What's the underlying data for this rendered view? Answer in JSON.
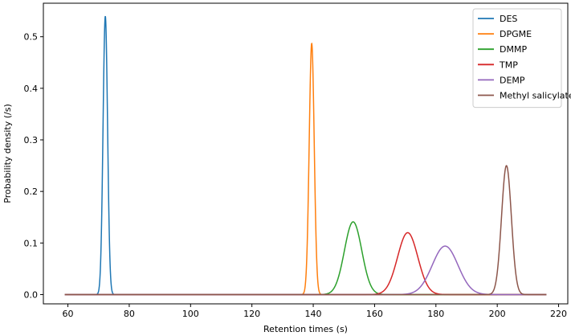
{
  "chart_data": {
    "type": "line",
    "title": "",
    "xlabel": "Retention times (s)",
    "ylabel": "Probability density (/s)",
    "xlim": [
      52,
      223
    ],
    "ylim": [
      -0.018,
      0.565
    ],
    "x_range": [
      59,
      216
    ],
    "xticks": [
      60,
      80,
      100,
      120,
      140,
      160,
      180,
      200,
      220
    ],
    "yticks": [
      0.0,
      0.1,
      0.2,
      0.3,
      0.4,
      0.5
    ],
    "ytick_labels": [
      "0.0",
      "0.1",
      "0.2",
      "0.3",
      "0.4",
      "0.5"
    ],
    "grid": false,
    "legend_position": "top-right",
    "series": [
      {
        "name": "DES",
        "color": "#1f77b4",
        "shape": "gaussian",
        "mean": 72.2,
        "peak": 0.54,
        "sd": 0.74
      },
      {
        "name": "DPGME",
        "color": "#ff7f0e",
        "shape": "gaussian",
        "mean": 139.5,
        "peak": 0.487,
        "sd": 0.82
      },
      {
        "name": "DMMP",
        "color": "#2ca02c",
        "shape": "gaussian",
        "mean": 153.0,
        "peak": 0.141,
        "sd": 2.83
      },
      {
        "name": "TMP",
        "color": "#d62728",
        "shape": "gaussian",
        "mean": 170.8,
        "peak": 0.12,
        "sd": 3.3
      },
      {
        "name": "DEMP",
        "color": "#9467bd",
        "shape": "gaussian",
        "mean": 183.0,
        "peak": 0.094,
        "sd": 4.2
      },
      {
        "name": "Methyl salicylate",
        "color": "#8c564b",
        "shape": "gaussian",
        "mean": 203.0,
        "peak": 0.25,
        "sd": 1.6
      }
    ]
  }
}
